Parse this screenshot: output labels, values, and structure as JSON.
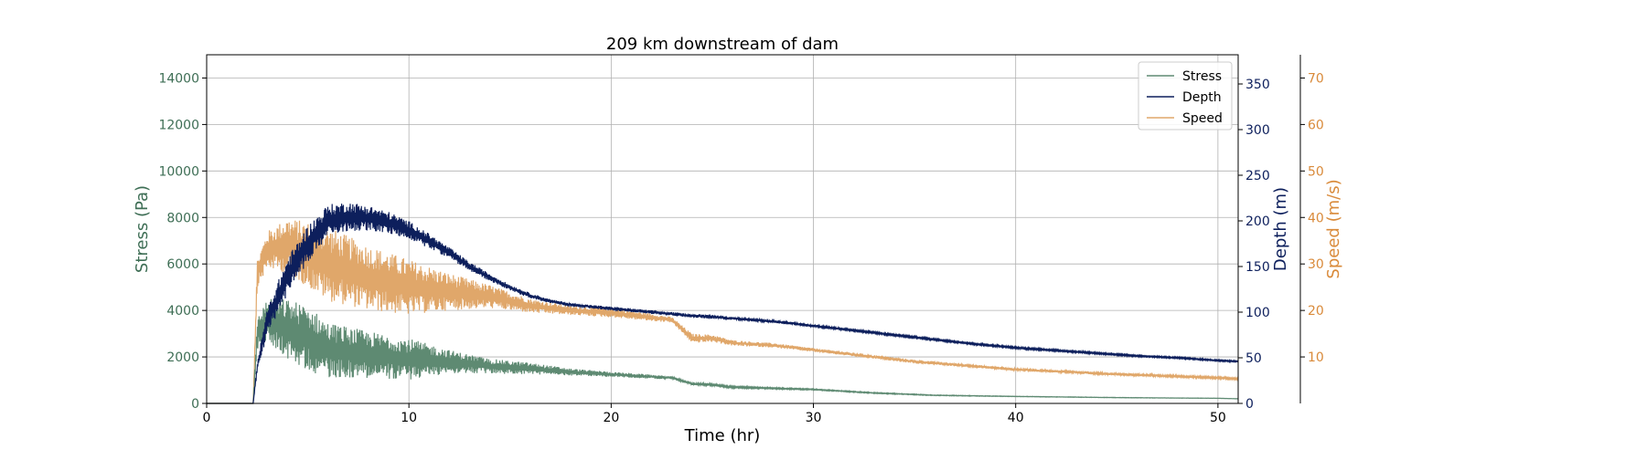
{
  "chart_data": {
    "type": "line",
    "title": "209 km downstream of dam",
    "xlabel": "Time (hr)",
    "xlim": [
      0,
      51
    ],
    "xticks": [
      0,
      10,
      20,
      30,
      40,
      50
    ],
    "grid": true,
    "legend_position": "top-right",
    "axes": [
      {
        "id": "stress",
        "label": "Stress (Pa)",
        "side": "left",
        "color": "#3e6e55",
        "ylim": [
          0,
          15000
        ],
        "ticks": [
          0,
          2000,
          4000,
          6000,
          8000,
          10000,
          12000,
          14000
        ]
      },
      {
        "id": "depth",
        "label": "Depth (m)",
        "side": "right",
        "color": "#0d1f5c",
        "ylim": [
          0,
          382
        ],
        "ticks": [
          0,
          50,
          100,
          150,
          200,
          250,
          300,
          350
        ]
      },
      {
        "id": "speed",
        "label": "Speed (m/s)",
        "side": "right-outer",
        "color": "#d98a3a",
        "ylim": [
          0,
          75
        ],
        "ticks": [
          10,
          20,
          30,
          40,
          50,
          60,
          70
        ]
      }
    ],
    "series": [
      {
        "name": "Stress",
        "axis": "stress",
        "color": "#5e8a72",
        "x": [
          0,
          2.3,
          2.5,
          3,
          4,
          5,
          6,
          8,
          10,
          12,
          14,
          16,
          18,
          20,
          22,
          23,
          24,
          25,
          26,
          28,
          30,
          33,
          36,
          40,
          45,
          50,
          51
        ],
        "y": [
          0,
          0,
          3000,
          3600,
          3200,
          2800,
          2300,
          2100,
          1900,
          1800,
          1600,
          1500,
          1350,
          1250,
          1150,
          1100,
          850,
          800,
          700,
          650,
          600,
          450,
          350,
          300,
          250,
          220,
          200
        ],
        "noise": [
          0,
          0,
          700,
          900,
          1300,
          1400,
          1200,
          1000,
          900,
          500,
          320,
          250,
          150,
          110,
          90,
          60,
          60,
          50,
          40,
          30,
          25,
          20,
          15,
          10,
          8,
          5,
          5
        ]
      },
      {
        "name": "Depth",
        "axis": "depth",
        "color": "#0d1f5c",
        "x": [
          0,
          2.3,
          2.5,
          3,
          4,
          5,
          6,
          7,
          8,
          9,
          10,
          11,
          12,
          13,
          14,
          15,
          16,
          17,
          18,
          20,
          22,
          23,
          24,
          25,
          26,
          28,
          30,
          32,
          34,
          36,
          38,
          40,
          42,
          44,
          46,
          48,
          50,
          51
        ],
        "y": [
          0,
          0,
          40,
          90,
          140,
          175,
          200,
          205,
          203,
          198,
          190,
          178,
          165,
          150,
          138,
          127,
          118,
          112,
          108,
          104,
          100,
          98,
          96,
          95,
          93,
          90,
          85,
          80,
          75,
          70,
          65,
          61,
          58,
          55,
          52,
          50,
          47,
          46
        ],
        "noise": [
          0,
          0,
          5,
          15,
          20,
          20,
          18,
          16,
          14,
          12,
          10,
          8,
          6,
          5,
          4,
          3,
          3,
          2,
          2,
          2,
          2,
          2,
          2,
          2,
          1.5,
          1.5,
          1.5,
          1,
          1,
          1,
          1,
          1,
          1,
          1,
          0.8,
          0.8,
          0.8,
          0.8
        ]
      },
      {
        "name": "Speed",
        "axis": "speed",
        "color": "#e0a76a",
        "x": [
          0,
          2.3,
          2.5,
          3,
          4,
          5,
          6,
          8,
          10,
          12,
          14,
          16,
          18,
          20,
          22,
          23,
          24,
          25,
          26,
          28,
          30,
          32,
          35,
          38,
          40,
          45,
          50,
          51
        ],
        "y": [
          0,
          0,
          28,
          33,
          34,
          32,
          30,
          27,
          25,
          24,
          23,
          21,
          20,
          19.5,
          18.5,
          18,
          14,
          14,
          13,
          12.5,
          11.5,
          10.5,
          9,
          8,
          7.3,
          6.3,
          5.5,
          5.3
        ],
        "noise": [
          0,
          0,
          3,
          4,
          6,
          7,
          8,
          7,
          6,
          4,
          2.5,
          1.5,
          1,
          1,
          0.8,
          0.6,
          1,
          0.8,
          0.6,
          0.5,
          0.4,
          0.4,
          0.4,
          0.3,
          0.3,
          0.3,
          0.2,
          0.2
        ]
      }
    ]
  }
}
